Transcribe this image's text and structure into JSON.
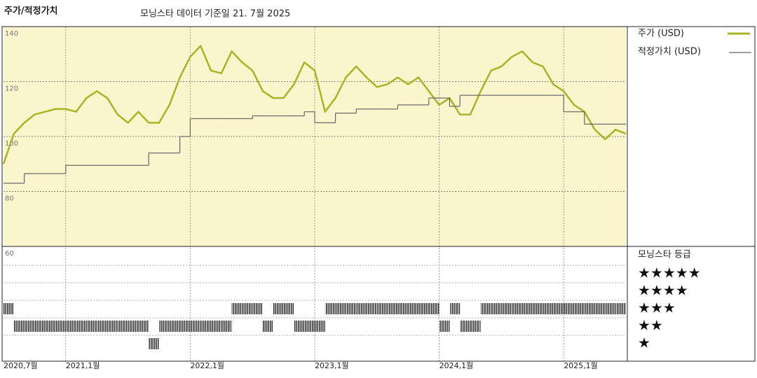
{
  "chart_data": [
    {
      "type": "line",
      "title": "주가/적정가치",
      "subtitle": "모닝스타 데이터 기준일 21. 7월 2025",
      "x": [
        "2020-07",
        "2020-08",
        "2020-09",
        "2020-10",
        "2020-11",
        "2020-12",
        "2021-01",
        "2021-02",
        "2021-03",
        "2021-04",
        "2021-05",
        "2021-06",
        "2021-07",
        "2021-08",
        "2021-09",
        "2021-10",
        "2021-11",
        "2021-12",
        "2022-01",
        "2022-02",
        "2022-03",
        "2022-04",
        "2022-05",
        "2022-06",
        "2022-07",
        "2022-08",
        "2022-09",
        "2022-10",
        "2022-11",
        "2022-12",
        "2023-01",
        "2023-02",
        "2023-03",
        "2023-04",
        "2023-05",
        "2023-06",
        "2023-07",
        "2023-08",
        "2023-09",
        "2023-10",
        "2023-11",
        "2023-12",
        "2024-01",
        "2024-02",
        "2024-03",
        "2024-04",
        "2024-05",
        "2024-06",
        "2024-07",
        "2024-08",
        "2024-09",
        "2024-10",
        "2024-11",
        "2024-12",
        "2025-01",
        "2025-02",
        "2025-03",
        "2025-04",
        "2025-05",
        "2025-06",
        "2025-07"
      ],
      "series": [
        {
          "name": "주가 (USD)",
          "color": "#a9b324",
          "values": [
            90,
            101,
            105,
            108,
            109,
            110,
            110,
            109,
            114,
            116.5,
            114,
            108,
            105,
            109,
            105,
            105,
            111.5,
            121.5,
            129,
            133,
            124,
            123,
            131,
            127,
            124,
            116.5,
            114,
            114,
            119,
            127,
            124,
            109,
            114,
            121.5,
            125.5,
            121.5,
            118,
            119,
            121.5,
            119,
            121.5,
            116.5,
            111.5,
            114,
            108,
            108,
            116.5,
            124,
            125.5,
            129,
            131,
            127,
            125.5,
            119,
            116.5,
            111.5,
            109,
            102.5,
            99,
            102.5,
            101
          ]
        },
        {
          "name": "적정가치 (USD)",
          "color": "#666666",
          "step": true,
          "values": [
            83,
            83,
            86.5,
            86.5,
            86.5,
            86.5,
            89.5,
            89.5,
            89.5,
            89.5,
            89.5,
            89.5,
            89.5,
            89.5,
            94,
            94,
            94,
            100,
            106.5,
            106.5,
            106.5,
            106.5,
            106.5,
            106.5,
            107.5,
            107.5,
            107.5,
            107.5,
            107.5,
            109,
            105,
            105,
            108.5,
            108.5,
            110,
            110,
            110,
            110,
            111.5,
            111.5,
            111.5,
            114,
            114,
            111,
            115,
            115,
            115,
            115,
            115,
            115,
            115,
            115,
            115,
            115,
            109,
            109,
            104.5,
            104.5,
            104.5,
            104.5,
            104.5
          ]
        }
      ],
      "xlim": [
        "2020-07",
        "2025-07"
      ],
      "xticks": [
        {
          "value": "2020-07",
          "label": "2020,7월"
        },
        {
          "value": "2021-01",
          "label": "2021,1월"
        },
        {
          "value": "2022-01",
          "label": "2022,1월"
        },
        {
          "value": "2023-01",
          "label": "2023,1월"
        },
        {
          "value": "2024-01",
          "label": "2024,1월"
        },
        {
          "value": "2025-01",
          "label": "2025,1월"
        }
      ],
      "ylim": [
        60,
        140
      ],
      "yticks": [
        60,
        80,
        100,
        120,
        140
      ],
      "grid": true,
      "background": "#faf5cd"
    },
    {
      "type": "rating",
      "title": "모닝스타 등급",
      "color": "#222222",
      "x": [
        "2020-07",
        "2020-08",
        "2020-09",
        "2020-10",
        "2020-11",
        "2020-12",
        "2021-01",
        "2021-02",
        "2021-03",
        "2021-04",
        "2021-05",
        "2021-06",
        "2021-07",
        "2021-08",
        "2021-09",
        "2021-10",
        "2021-11",
        "2021-12",
        "2022-01",
        "2022-02",
        "2022-03",
        "2022-04",
        "2022-05",
        "2022-06",
        "2022-07",
        "2022-08",
        "2022-09",
        "2022-10",
        "2022-11",
        "2022-12",
        "2023-01",
        "2023-02",
        "2023-03",
        "2023-04",
        "2023-05",
        "2023-06",
        "2023-07",
        "2023-08",
        "2023-09",
        "2023-10",
        "2023-11",
        "2023-12",
        "2024-01",
        "2024-02",
        "2024-03",
        "2024-04",
        "2024-05",
        "2024-06",
        "2024-07",
        "2024-08",
        "2024-09",
        "2024-10",
        "2024-11",
        "2024-12",
        "2025-01",
        "2025-02",
        "2025-03",
        "2025-04",
        "2025-05",
        "2025-06",
        "2025-07"
      ],
      "values": [
        3,
        2,
        2,
        2,
        2,
        2,
        2,
        2,
        2,
        2,
        2,
        2,
        2,
        2,
        1,
        2,
        2,
        2,
        2,
        2,
        2,
        2,
        3,
        3,
        3,
        2,
        3,
        3,
        2,
        2,
        2,
        3,
        3,
        3,
        3,
        3,
        3,
        3,
        3,
        3,
        3,
        3,
        2,
        3,
        2,
        2,
        3,
        3,
        3,
        3,
        3,
        3,
        3,
        3,
        3,
        3,
        3,
        3,
        3,
        3,
        3
      ],
      "xlim": [
        "2020-07",
        "2025-07"
      ],
      "ylim": [
        1,
        5
      ],
      "yticks": [
        {
          "value": 5,
          "label": "★★★★★"
        },
        {
          "value": 4,
          "label": "★★★★"
        },
        {
          "value": 3,
          "label": "★★★"
        },
        {
          "value": 2,
          "label": "★★"
        },
        {
          "value": 1,
          "label": "★"
        }
      ]
    }
  ]
}
